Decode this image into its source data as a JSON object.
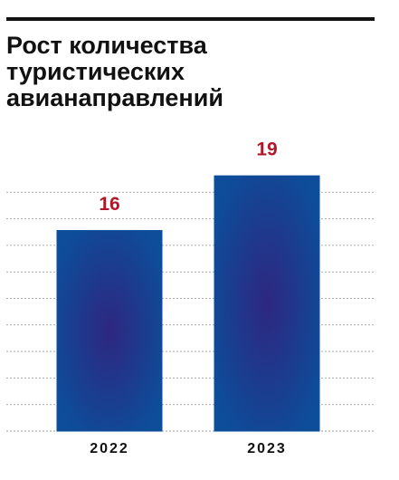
{
  "chart_data": {
    "type": "bar",
    "title": "Рост количества туристических авианаправлений",
    "categories": [
      "2022",
      "2023"
    ],
    "values": [
      16,
      19
    ],
    "color": "#0d4d9a",
    "label_color": "#b0182a",
    "ylim": [
      5,
      20
    ],
    "grid": true
  }
}
